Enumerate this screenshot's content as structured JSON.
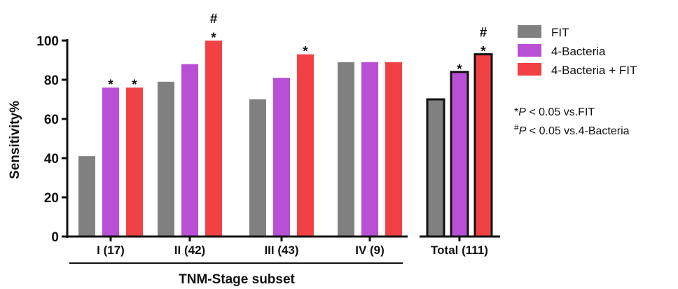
{
  "chart_data": {
    "type": "bar",
    "ylabel": "Sensitivity%",
    "xlabel": "TNM-Stage subset",
    "ylim": [
      0,
      100
    ],
    "yticks": [
      "0",
      "20",
      "40",
      "60",
      "80",
      "100"
    ],
    "categories": [
      "I (17)",
      "II (42)",
      "III (43)",
      "IV (9)",
      "Total (111)"
    ],
    "series": [
      {
        "name": "FIT",
        "color": "#808080",
        "values": [
          41,
          79,
          70,
          89,
          70
        ]
      },
      {
        "name": "4-Bacteria",
        "color": "#b84fd4",
        "values": [
          76,
          88,
          81,
          89,
          84
        ]
      },
      {
        "name": "4-Bacteria + FIT",
        "color": "#f24144",
        "values": [
          76,
          100,
          93,
          89,
          93
        ]
      }
    ],
    "annotations": [
      {
        "category": "I (17)",
        "series": "4-Bacteria",
        "marks": [
          "*"
        ]
      },
      {
        "category": "I (17)",
        "series": "4-Bacteria + FIT",
        "marks": [
          "*"
        ]
      },
      {
        "category": "II (42)",
        "series": "4-Bacteria + FIT",
        "marks": [
          "#",
          "*"
        ]
      },
      {
        "category": "III (43)",
        "series": "4-Bacteria + FIT",
        "marks": [
          "*"
        ]
      },
      {
        "category": "Total (111)",
        "series": "4-Bacteria",
        "marks": [
          "*"
        ]
      },
      {
        "category": "Total (111)",
        "series": "4-Bacteria + FIT",
        "marks": [
          "#",
          "*"
        ]
      }
    ],
    "outlined_category": "Total (111)",
    "significance_notes": [
      {
        "prefix": "*",
        "p_symbol": "P",
        "text": " < 0.05 vs.FIT"
      },
      {
        "prefix": "#",
        "p_symbol": "P",
        "text": " < 0.05 vs.4-Bacteria"
      }
    ],
    "legend_position": "right"
  }
}
